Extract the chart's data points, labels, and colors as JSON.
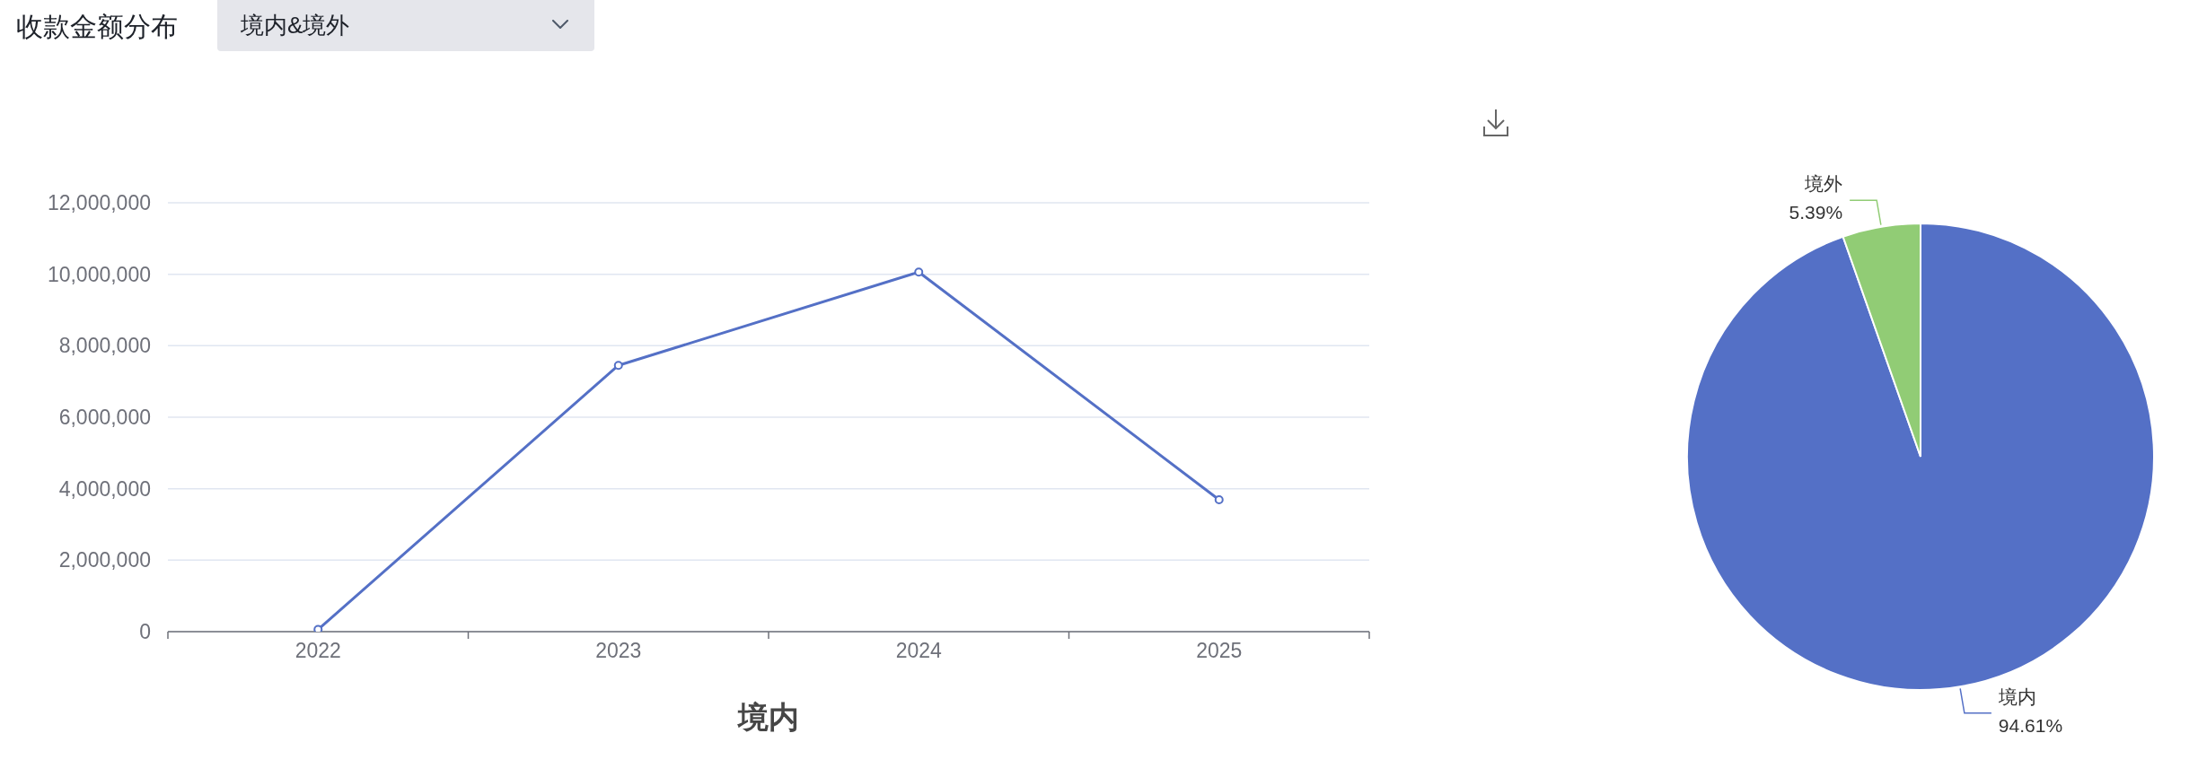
{
  "chart_data": [
    {
      "type": "line",
      "title": "境内",
      "annotations": [
        "收款金额分布",
        "境内&境外"
      ],
      "categories": [
        "2022",
        "2023",
        "2024",
        "2025"
      ],
      "series": [
        {
          "color": "#5470c6",
          "values": [
            60000,
            7450000,
            10060000,
            3690000
          ]
        }
      ],
      "ylim": [
        0,
        12000000
      ],
      "yticks": [
        0,
        {
          "value": 2000000,
          "label": "2,000,000"
        },
        {
          "value": 4000000,
          "label": "4,000,000"
        },
        {
          "value": 6000000,
          "label": "6,000,000"
        },
        {
          "value": 8000000,
          "label": "8,000,000"
        },
        {
          "value": 10000000,
          "label": "10,000,000"
        },
        {
          "value": 12000000,
          "label": "12,000,000"
        }
      ],
      "grid": "y",
      "marker": "circle",
      "line_style": "solid"
    },
    {
      "type": "pie",
      "categories": [
        "境内",
        "境外"
      ],
      "values": [
        94.61,
        5.39
      ],
      "colors": [
        "#5470c6",
        "#91cc75"
      ],
      "value_labels": [
        "94.61%",
        "5.39%"
      ]
    }
  ]
}
